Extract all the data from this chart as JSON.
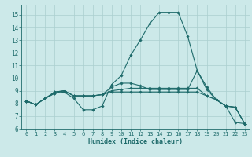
{
  "xlabel": "Humidex (Indice chaleur)",
  "xlim": [
    -0.5,
    23.5
  ],
  "ylim": [
    6,
    15.8
  ],
  "yticks": [
    6,
    7,
    8,
    9,
    10,
    11,
    12,
    13,
    14,
    15
  ],
  "xticks": [
    0,
    1,
    2,
    3,
    4,
    5,
    6,
    7,
    8,
    9,
    10,
    11,
    12,
    13,
    14,
    15,
    16,
    17,
    18,
    19,
    20,
    21,
    22,
    23
  ],
  "bg_color": "#cce9e9",
  "line_color": "#1e6b6b",
  "grid_color": "#aacfcf",
  "lines": [
    {
      "x": [
        0,
        1,
        2,
        3,
        4,
        5,
        6,
        7,
        8,
        9,
        10,
        11,
        12,
        13,
        14,
        15,
        16,
        17,
        18,
        19,
        20,
        21,
        22,
        23
      ],
      "y": [
        8.2,
        7.9,
        8.4,
        8.8,
        8.9,
        8.4,
        7.5,
        7.5,
        7.8,
        9.5,
        10.2,
        11.8,
        13.0,
        14.3,
        15.2,
        15.2,
        15.2,
        13.3,
        10.6,
        9.3,
        8.3,
        7.8,
        6.5,
        6.4
      ]
    },
    {
      "x": [
        0,
        1,
        2,
        3,
        4,
        5,
        6,
        7,
        8,
        9,
        10,
        11,
        12,
        13,
        14,
        15,
        16,
        17,
        18,
        19,
        20,
        21,
        22,
        23
      ],
      "y": [
        8.2,
        7.9,
        8.4,
        8.8,
        9.0,
        8.6,
        8.6,
        8.6,
        8.7,
        9.3,
        9.6,
        9.6,
        9.4,
        9.1,
        9.1,
        9.1,
        9.1,
        9.1,
        10.6,
        9.1,
        8.3,
        7.8,
        7.7,
        6.4
      ]
    },
    {
      "x": [
        0,
        1,
        2,
        3,
        4,
        5,
        6,
        7,
        8,
        9,
        10,
        11,
        12,
        13,
        14,
        15,
        16,
        17,
        18,
        19,
        20,
        21,
        22,
        23
      ],
      "y": [
        8.2,
        7.9,
        8.4,
        8.9,
        9.0,
        8.6,
        8.6,
        8.6,
        8.7,
        8.9,
        8.9,
        8.9,
        8.9,
        8.9,
        8.9,
        8.9,
        8.9,
        8.9,
        8.9,
        8.6,
        8.3,
        7.8,
        7.7,
        6.4
      ]
    },
    {
      "x": [
        0,
        1,
        2,
        3,
        4,
        5,
        6,
        7,
        8,
        9,
        10,
        11,
        12,
        13,
        14,
        15,
        16,
        17,
        18,
        19,
        20,
        21,
        22,
        23
      ],
      "y": [
        8.2,
        7.9,
        8.4,
        8.9,
        9.0,
        8.6,
        8.6,
        8.6,
        8.7,
        9.0,
        9.1,
        9.2,
        9.2,
        9.2,
        9.2,
        9.2,
        9.2,
        9.2,
        9.2,
        8.6,
        8.3,
        7.8,
        7.7,
        6.4
      ]
    }
  ]
}
